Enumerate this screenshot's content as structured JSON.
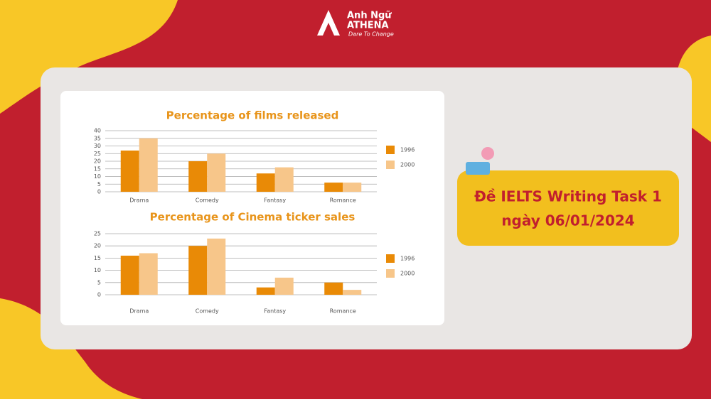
{
  "brand": {
    "name": "Anh Ngữ",
    "sub": "ATHENA",
    "tagline": "Dare To Change"
  },
  "banner": {
    "line1": "Đề IELTS Writing Task 1",
    "line2": "ngày 06/01/2024"
  },
  "chart_data": [
    {
      "type": "bar",
      "title": "Percentage of films released",
      "categories": [
        "Drama",
        "Comedy",
        "Fantasy",
        "Romance"
      ],
      "series": [
        {
          "name": "1996",
          "color": "#e98a06",
          "values": [
            27,
            20,
            12,
            6
          ]
        },
        {
          "name": "2000",
          "color": "#f7c68a",
          "values": [
            35,
            25,
            16,
            6
          ]
        }
      ],
      "ylim": [
        0,
        40
      ],
      "yticks": [
        0,
        5,
        10,
        15,
        20,
        25,
        30,
        35,
        40
      ],
      "grid": true,
      "legend": "right"
    },
    {
      "type": "bar",
      "title": "Percentage of Cinema ticker sales",
      "categories": [
        "Drama",
        "Comedy",
        "Fantasy",
        "Romance"
      ],
      "series": [
        {
          "name": "1996",
          "color": "#e98a06",
          "values": [
            16,
            20,
            3,
            5
          ]
        },
        {
          "name": "2000",
          "color": "#f7c68a",
          "values": [
            17,
            23,
            7,
            2
          ]
        }
      ],
      "ylim": [
        0,
        25
      ],
      "yticks": [
        0,
        5,
        10,
        15,
        20,
        25
      ],
      "grid": true,
      "legend": "right"
    }
  ]
}
